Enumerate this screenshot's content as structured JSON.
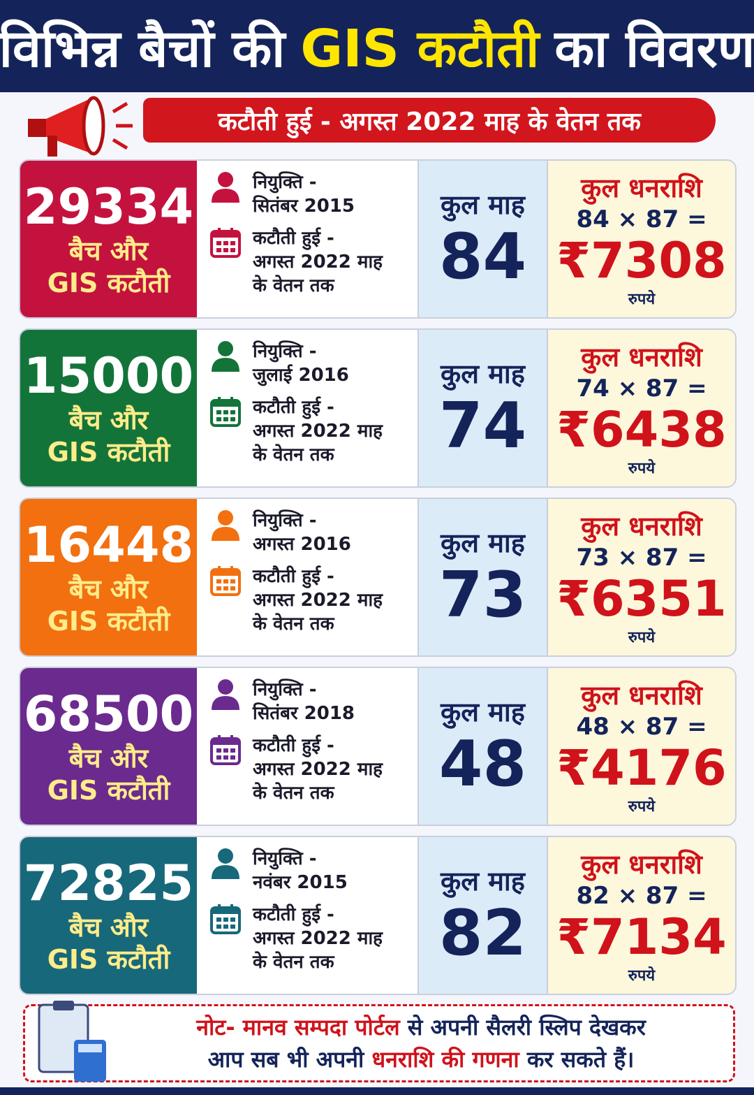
{
  "header": {
    "title_parts": [
      "विभिन्न बैचों की",
      "GIS कटौती",
      "का विवरण"
    ],
    "banner": "कटौती हुई - अगस्त 2022 माह के वेतन तक"
  },
  "labels": {
    "batch_line1": "बैच और",
    "batch_line2": "GIS कटौती",
    "appointment": "नियुक्ति -",
    "deduction_line1": "कटौती हुई -",
    "deduction_line2": "अगस्त 2022 माह",
    "deduction_line3": "के वेतन तक",
    "months_title": "कुल माह",
    "amount_title": "कुल धनराशि",
    "currency": "₹",
    "rupees": "रुपये"
  },
  "cards": [
    {
      "batch": "29334",
      "appointment_date": "सितंबर 2015",
      "months": "84",
      "formula": "84 × 87 =",
      "amount": "7308",
      "color": "#c4123f"
    },
    {
      "batch": "15000",
      "appointment_date": "जुलाई 2016",
      "months": "74",
      "formula": "74 × 87 =",
      "amount": "6438",
      "color": "#13743a"
    },
    {
      "batch": "16448",
      "appointment_date": "अगस्त 2016",
      "months": "73",
      "formula": "73 × 87 =",
      "amount": "6351",
      "color": "#f2700f"
    },
    {
      "batch": "68500",
      "appointment_date": "सितंबर 2018",
      "months": "48",
      "formula": "48 × 87 =",
      "amount": "4176",
      "color": "#6b2a8e"
    },
    {
      "batch": "72825",
      "appointment_date": "नवंबर 2015",
      "months": "82",
      "formula": "82 × 87 =",
      "amount": "7134",
      "color": "#17687a"
    }
  ],
  "note": {
    "label": "नोट-",
    "parts": [
      "मानव सम्पदा पोर्टल",
      "से अपनी सैलरी स्लिप देखकर",
      "आप सब भी अपनी",
      "धनराशि की गणना",
      "कर सकते हैं।"
    ]
  }
}
